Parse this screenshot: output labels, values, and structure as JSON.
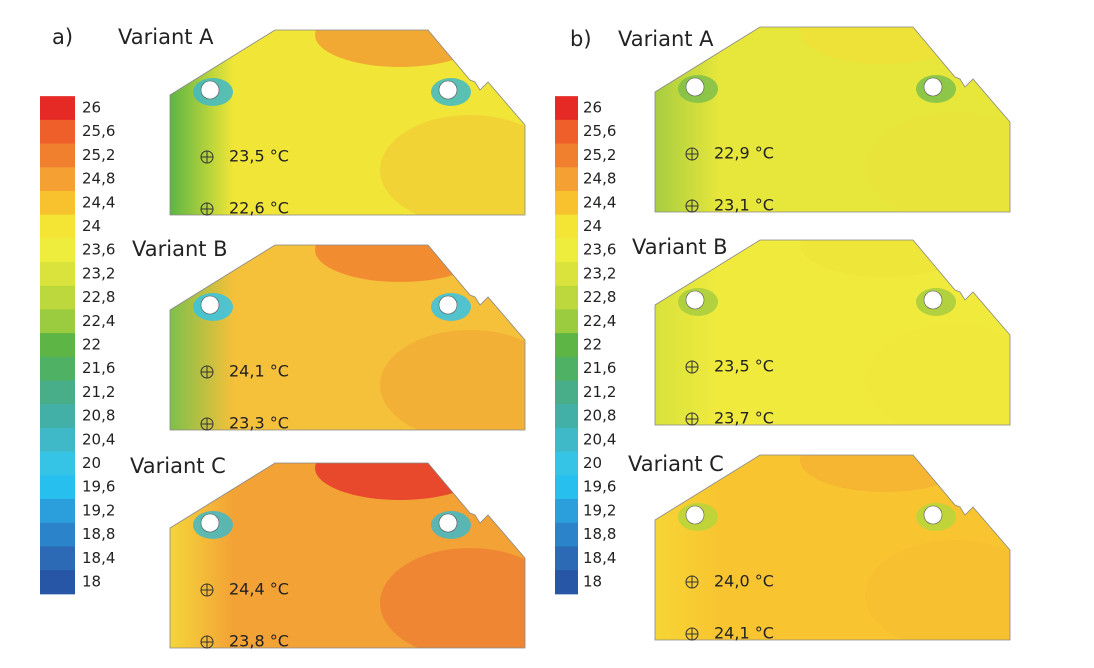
{
  "legend": {
    "items": [
      {
        "label": "26",
        "color": "#e52a26"
      },
      {
        "label": "25,6",
        "color": "#ef5f2a"
      },
      {
        "label": "25,2",
        "color": "#f07f2e"
      },
      {
        "label": "24,8",
        "color": "#f5a033"
      },
      {
        "label": "24,4",
        "color": "#f8c22f"
      },
      {
        "label": "24",
        "color": "#f4e534"
      },
      {
        "label": "23,6",
        "color": "#eeec3d"
      },
      {
        "label": "23,2",
        "color": "#d9e33c"
      },
      {
        "label": "22,8",
        "color": "#bcd83c"
      },
      {
        "label": "22,4",
        "color": "#9bcb3f"
      },
      {
        "label": "22",
        "color": "#5cb544"
      },
      {
        "label": "21,6",
        "color": "#4fb164"
      },
      {
        "label": "21,2",
        "color": "#48ae8a"
      },
      {
        "label": "20,8",
        "color": "#43b0a7"
      },
      {
        "label": "20,4",
        "color": "#3fb8c8"
      },
      {
        "label": "20",
        "color": "#35c3e6"
      },
      {
        "label": "19,6",
        "color": "#26bfee"
      },
      {
        "label": "19,2",
        "color": "#2a9fdc"
      },
      {
        "label": "18,8",
        "color": "#2b83c9"
      },
      {
        "label": "18,4",
        "color": "#2c6ab6"
      },
      {
        "label": "18",
        "color": "#2856a6"
      }
    ]
  },
  "panels": [
    {
      "label": "a)",
      "variants": [
        {
          "name": "Variant A",
          "probes": [
            "23,5 °C",
            "22,6 °C"
          ]
        },
        {
          "name": "Variant B",
          "probes": [
            "24,1 °C",
            "23,3 °C"
          ]
        },
        {
          "name": "Variant C",
          "probes": [
            "24,4 °C",
            "23,8 °C"
          ]
        }
      ]
    },
    {
      "label": "b)",
      "variants": [
        {
          "name": "Variant A",
          "probes": [
            "22,9 °C",
            "23,1 °C"
          ]
        },
        {
          "name": "Variant B",
          "probes": [
            "23,5 °C",
            "23,7 °C"
          ]
        },
        {
          "name": "Variant C",
          "probes": [
            "24,0 °C",
            "24,1 °C"
          ]
        }
      ]
    }
  ]
}
